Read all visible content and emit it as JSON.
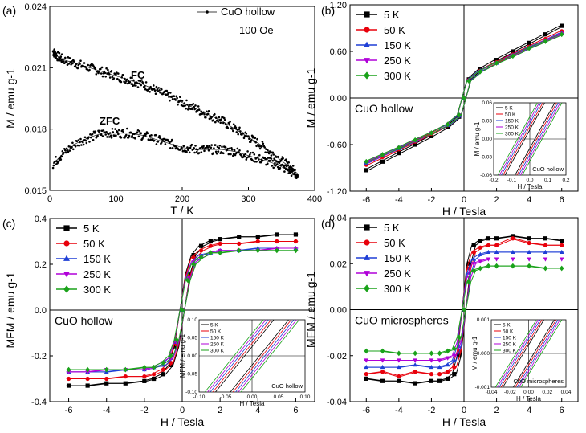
{
  "figure": "four-panel magnetization figure",
  "colors": {
    "5 K": "#000000",
    "50 K": "#e8000b",
    "150 K": "#1f3fd6",
    "250 K": "#b000d8",
    "300 K": "#1aa21a"
  },
  "chart_data": [
    {
      "panel": "a",
      "panel_label": "(a)",
      "type": "scatter",
      "xlabel": "T / K",
      "ylabel": "M / emu g-1",
      "xlim": [
        0,
        400
      ],
      "ylim": [
        0.015,
        0.024
      ],
      "xticks": [
        "0",
        "100",
        "200",
        "300",
        "400"
      ],
      "yticks": [
        "0.015",
        "0.018",
        "0.021",
        "0.024"
      ],
      "legend": [
        "CuO hollow",
        "100 Oe"
      ],
      "annotations": [
        "FC",
        "ZFC"
      ],
      "series": [
        {
          "name": "FC",
          "x": [
            5,
            10,
            20,
            40,
            60,
            80,
            100,
            120,
            140,
            160,
            180,
            200,
            220,
            240,
            260,
            280,
            300,
            320,
            340,
            360,
            375
          ],
          "y": [
            0.0218,
            0.0216,
            0.0214,
            0.0212,
            0.021,
            0.0208,
            0.0206,
            0.0204,
            0.0202,
            0.0199,
            0.0196,
            0.0193,
            0.019,
            0.0187,
            0.0184,
            0.018,
            0.0176,
            0.0172,
            0.0167,
            0.0162,
            0.0158
          ]
        },
        {
          "name": "ZFC",
          "x": [
            5,
            20,
            40,
            60,
            80,
            100,
            120,
            140,
            160,
            180,
            200,
            220,
            240,
            260,
            280,
            300,
            320,
            340,
            360,
            375
          ],
          "y": [
            0.0163,
            0.0168,
            0.0173,
            0.0176,
            0.0178,
            0.0178,
            0.0178,
            0.0177,
            0.0175,
            0.0173,
            0.0171,
            0.017,
            0.017,
            0.017,
            0.0169,
            0.0167,
            0.0165,
            0.0163,
            0.016,
            0.0157
          ]
        }
      ]
    },
    {
      "panel": "b",
      "panel_label": "(b)",
      "type": "line",
      "xlabel": "H / Tesla",
      "ylabel": "M / emu g-1",
      "xlim": [
        -7,
        7
      ],
      "ylim": [
        -1.2,
        1.2
      ],
      "xticks": [
        "-6",
        "-4",
        "-2",
        "0",
        "2",
        "4",
        "6"
      ],
      "yticks": [
        "-1.20",
        "-0.60",
        "0.00",
        "0.60",
        "1.20"
      ],
      "sample_label": "CuO hollow",
      "x": [
        -6,
        -5,
        -4,
        -3,
        -2,
        -1,
        -0.3,
        0,
        0.3,
        1,
        2,
        3,
        4,
        5,
        6
      ],
      "series": [
        {
          "name": "5 K",
          "values": [
            -0.93,
            -0.82,
            -0.71,
            -0.6,
            -0.49,
            -0.37,
            -0.24,
            0,
            0.24,
            0.37,
            0.49,
            0.6,
            0.71,
            0.82,
            0.93
          ]
        },
        {
          "name": "50 K",
          "values": [
            -0.86,
            -0.76,
            -0.66,
            -0.56,
            -0.46,
            -0.35,
            -0.23,
            0,
            0.23,
            0.35,
            0.46,
            0.56,
            0.66,
            0.76,
            0.86
          ]
        },
        {
          "name": "150 K",
          "values": [
            -0.84,
            -0.74,
            -0.65,
            -0.55,
            -0.45,
            -0.35,
            -0.23,
            0,
            0.23,
            0.35,
            0.45,
            0.55,
            0.65,
            0.74,
            0.84
          ]
        },
        {
          "name": "250 K",
          "values": [
            -0.83,
            -0.74,
            -0.64,
            -0.55,
            -0.45,
            -0.34,
            -0.22,
            0,
            0.22,
            0.34,
            0.45,
            0.55,
            0.64,
            0.74,
            0.83
          ]
        },
        {
          "name": "300 K",
          "values": [
            -0.82,
            -0.73,
            -0.64,
            -0.54,
            -0.45,
            -0.34,
            -0.22,
            0,
            0.22,
            0.34,
            0.45,
            0.54,
            0.64,
            0.73,
            0.82
          ]
        }
      ],
      "inset": {
        "xlabel": "H / Tesla",
        "ylabel": "M / emu g-1",
        "xlim": [
          -0.2,
          0.2
        ],
        "ylim": [
          -0.06,
          0.06
        ],
        "xticks": [
          "-0.2",
          "-0.1",
          "0.0",
          "0.1",
          "0.2"
        ],
        "yticks": [
          "-0.06",
          "-0.03",
          "0.00",
          "0.03",
          "0.06"
        ],
        "label": "CuO hollow",
        "legend": [
          "5 K",
          "50 K",
          "150 K",
          "250 K",
          "300 K"
        ]
      }
    },
    {
      "panel": "c",
      "panel_label": "(c)",
      "type": "line",
      "xlabel": "H / Tesla",
      "ylabel": "MFM / emu g-1",
      "xlim": [
        -7,
        7
      ],
      "ylim": [
        -0.4,
        0.4
      ],
      "xticks": [
        "-6",
        "-4",
        "-2",
        "0",
        "2",
        "4",
        "6"
      ],
      "yticks": [
        "-0.4",
        "-0.2",
        "0.0",
        "0.2",
        "0.4"
      ],
      "sample_label": "CuO hollow",
      "x": [
        -6,
        -5,
        -4,
        -3,
        -2,
        -1.5,
        -1,
        -0.6,
        -0.3,
        0,
        0.3,
        0.6,
        1,
        1.5,
        2,
        3,
        4,
        5,
        6
      ],
      "series": [
        {
          "name": "5 K",
          "values": [
            -0.33,
            -0.33,
            -0.32,
            -0.32,
            -0.31,
            -0.3,
            -0.28,
            -0.24,
            -0.16,
            0,
            0.16,
            0.24,
            0.28,
            0.3,
            0.31,
            0.32,
            0.32,
            0.33,
            0.33
          ]
        },
        {
          "name": "50 K",
          "values": [
            -0.3,
            -0.3,
            -0.3,
            -0.29,
            -0.29,
            -0.28,
            -0.26,
            -0.23,
            -0.15,
            0,
            0.15,
            0.23,
            0.26,
            0.28,
            0.29,
            0.29,
            0.3,
            0.3,
            0.3
          ]
        },
        {
          "name": "150 K",
          "values": [
            -0.27,
            -0.27,
            -0.27,
            -0.26,
            -0.26,
            -0.25,
            -0.24,
            -0.21,
            -0.14,
            0,
            0.14,
            0.21,
            0.24,
            0.25,
            0.26,
            0.26,
            0.27,
            0.27,
            0.27
          ]
        },
        {
          "name": "250 K",
          "values": [
            -0.27,
            -0.27,
            -0.26,
            -0.26,
            -0.26,
            -0.25,
            -0.23,
            -0.21,
            -0.14,
            0,
            0.14,
            0.21,
            0.23,
            0.25,
            0.26,
            0.26,
            0.26,
            0.27,
            0.27
          ]
        },
        {
          "name": "300 K",
          "values": [
            -0.26,
            -0.26,
            -0.26,
            -0.26,
            -0.25,
            -0.25,
            -0.23,
            -0.2,
            -0.13,
            0,
            0.13,
            0.2,
            0.23,
            0.25,
            0.25,
            0.26,
            0.26,
            0.26,
            0.26
          ]
        }
      ],
      "inset": {
        "xlabel": "H / Tesla",
        "ylabel": "MFM / emu g-1",
        "xlim": [
          -0.1,
          0.1
        ],
        "ylim": [
          -0.1,
          0.1
        ],
        "xticks": [
          "-0.10",
          "-0.05",
          "0.00",
          "0.05",
          "0.10"
        ],
        "yticks": [
          "-0.10",
          "-0.05",
          "0.00",
          "0.05",
          "0.10"
        ],
        "label": "CuO hollow",
        "legend": [
          "5 K",
          "50 K",
          "150 K",
          "250 K",
          "300 K"
        ]
      }
    },
    {
      "panel": "d",
      "panel_label": "(d)",
      "type": "line",
      "xlabel": "H / Tesla",
      "ylabel": "MFM / emu g-1",
      "xlim": [
        -7,
        7
      ],
      "ylim": [
        -0.04,
        0.04
      ],
      "xticks": [
        "-6",
        "-4",
        "-2",
        "0",
        "2",
        "4",
        "6"
      ],
      "yticks": [
        "-0.04",
        "-0.02",
        "0.00",
        "0.02",
        "0.04"
      ],
      "sample_label": "CuO microspheres",
      "x": [
        -6,
        -5,
        -4,
        -3,
        -2,
        -1.5,
        -1,
        -0.6,
        -0.3,
        0,
        0.3,
        0.6,
        1,
        1.5,
        2,
        3,
        4,
        5,
        6
      ],
      "series": [
        {
          "name": "5 K",
          "values": [
            -0.03,
            -0.031,
            -0.031,
            -0.032,
            -0.031,
            -0.031,
            -0.03,
            -0.028,
            -0.02,
            0,
            0.02,
            0.028,
            0.03,
            0.031,
            0.031,
            0.032,
            0.031,
            0.031,
            0.03
          ]
        },
        {
          "name": "50 K",
          "values": [
            -0.028,
            -0.027,
            -0.029,
            -0.027,
            -0.028,
            -0.028,
            -0.027,
            -0.025,
            -0.018,
            0,
            0.018,
            0.025,
            0.027,
            0.028,
            0.028,
            0.031,
            0.029,
            0.028,
            0.028
          ]
        },
        {
          "name": "150 K",
          "values": [
            -0.025,
            -0.025,
            -0.025,
            -0.024,
            -0.025,
            -0.025,
            -0.024,
            -0.022,
            -0.016,
            0,
            0.016,
            0.022,
            0.024,
            0.025,
            0.025,
            0.025,
            0.025,
            0.025,
            0.025
          ]
        },
        {
          "name": "250 K",
          "values": [
            -0.022,
            -0.022,
            -0.022,
            -0.022,
            -0.022,
            -0.022,
            -0.021,
            -0.02,
            -0.014,
            0,
            0.014,
            0.02,
            0.021,
            0.022,
            0.022,
            0.022,
            0.022,
            0.022,
            0.022
          ]
        },
        {
          "name": "300 K",
          "values": [
            -0.018,
            -0.018,
            -0.019,
            -0.019,
            -0.019,
            -0.019,
            -0.018,
            -0.017,
            -0.012,
            0,
            0.012,
            0.017,
            0.018,
            0.019,
            0.019,
            0.019,
            0.019,
            0.018,
            0.018
          ]
        }
      ],
      "inset": {
        "xlabel": "H / Tesla",
        "ylabel": "M / emu g-1",
        "xlim": [
          -0.04,
          0.04
        ],
        "ylim": [
          -0.001,
          0.001
        ],
        "xticks": [
          "-0.04",
          "-0.02",
          "0.00",
          "0.02",
          "0.04"
        ],
        "yticks": [
          "-0.001",
          "0.000",
          "0.001"
        ],
        "label": "CuO microspheres",
        "legend": [
          "5 K",
          "50 K",
          "150 K",
          "250 K",
          "300 K"
        ]
      }
    }
  ]
}
